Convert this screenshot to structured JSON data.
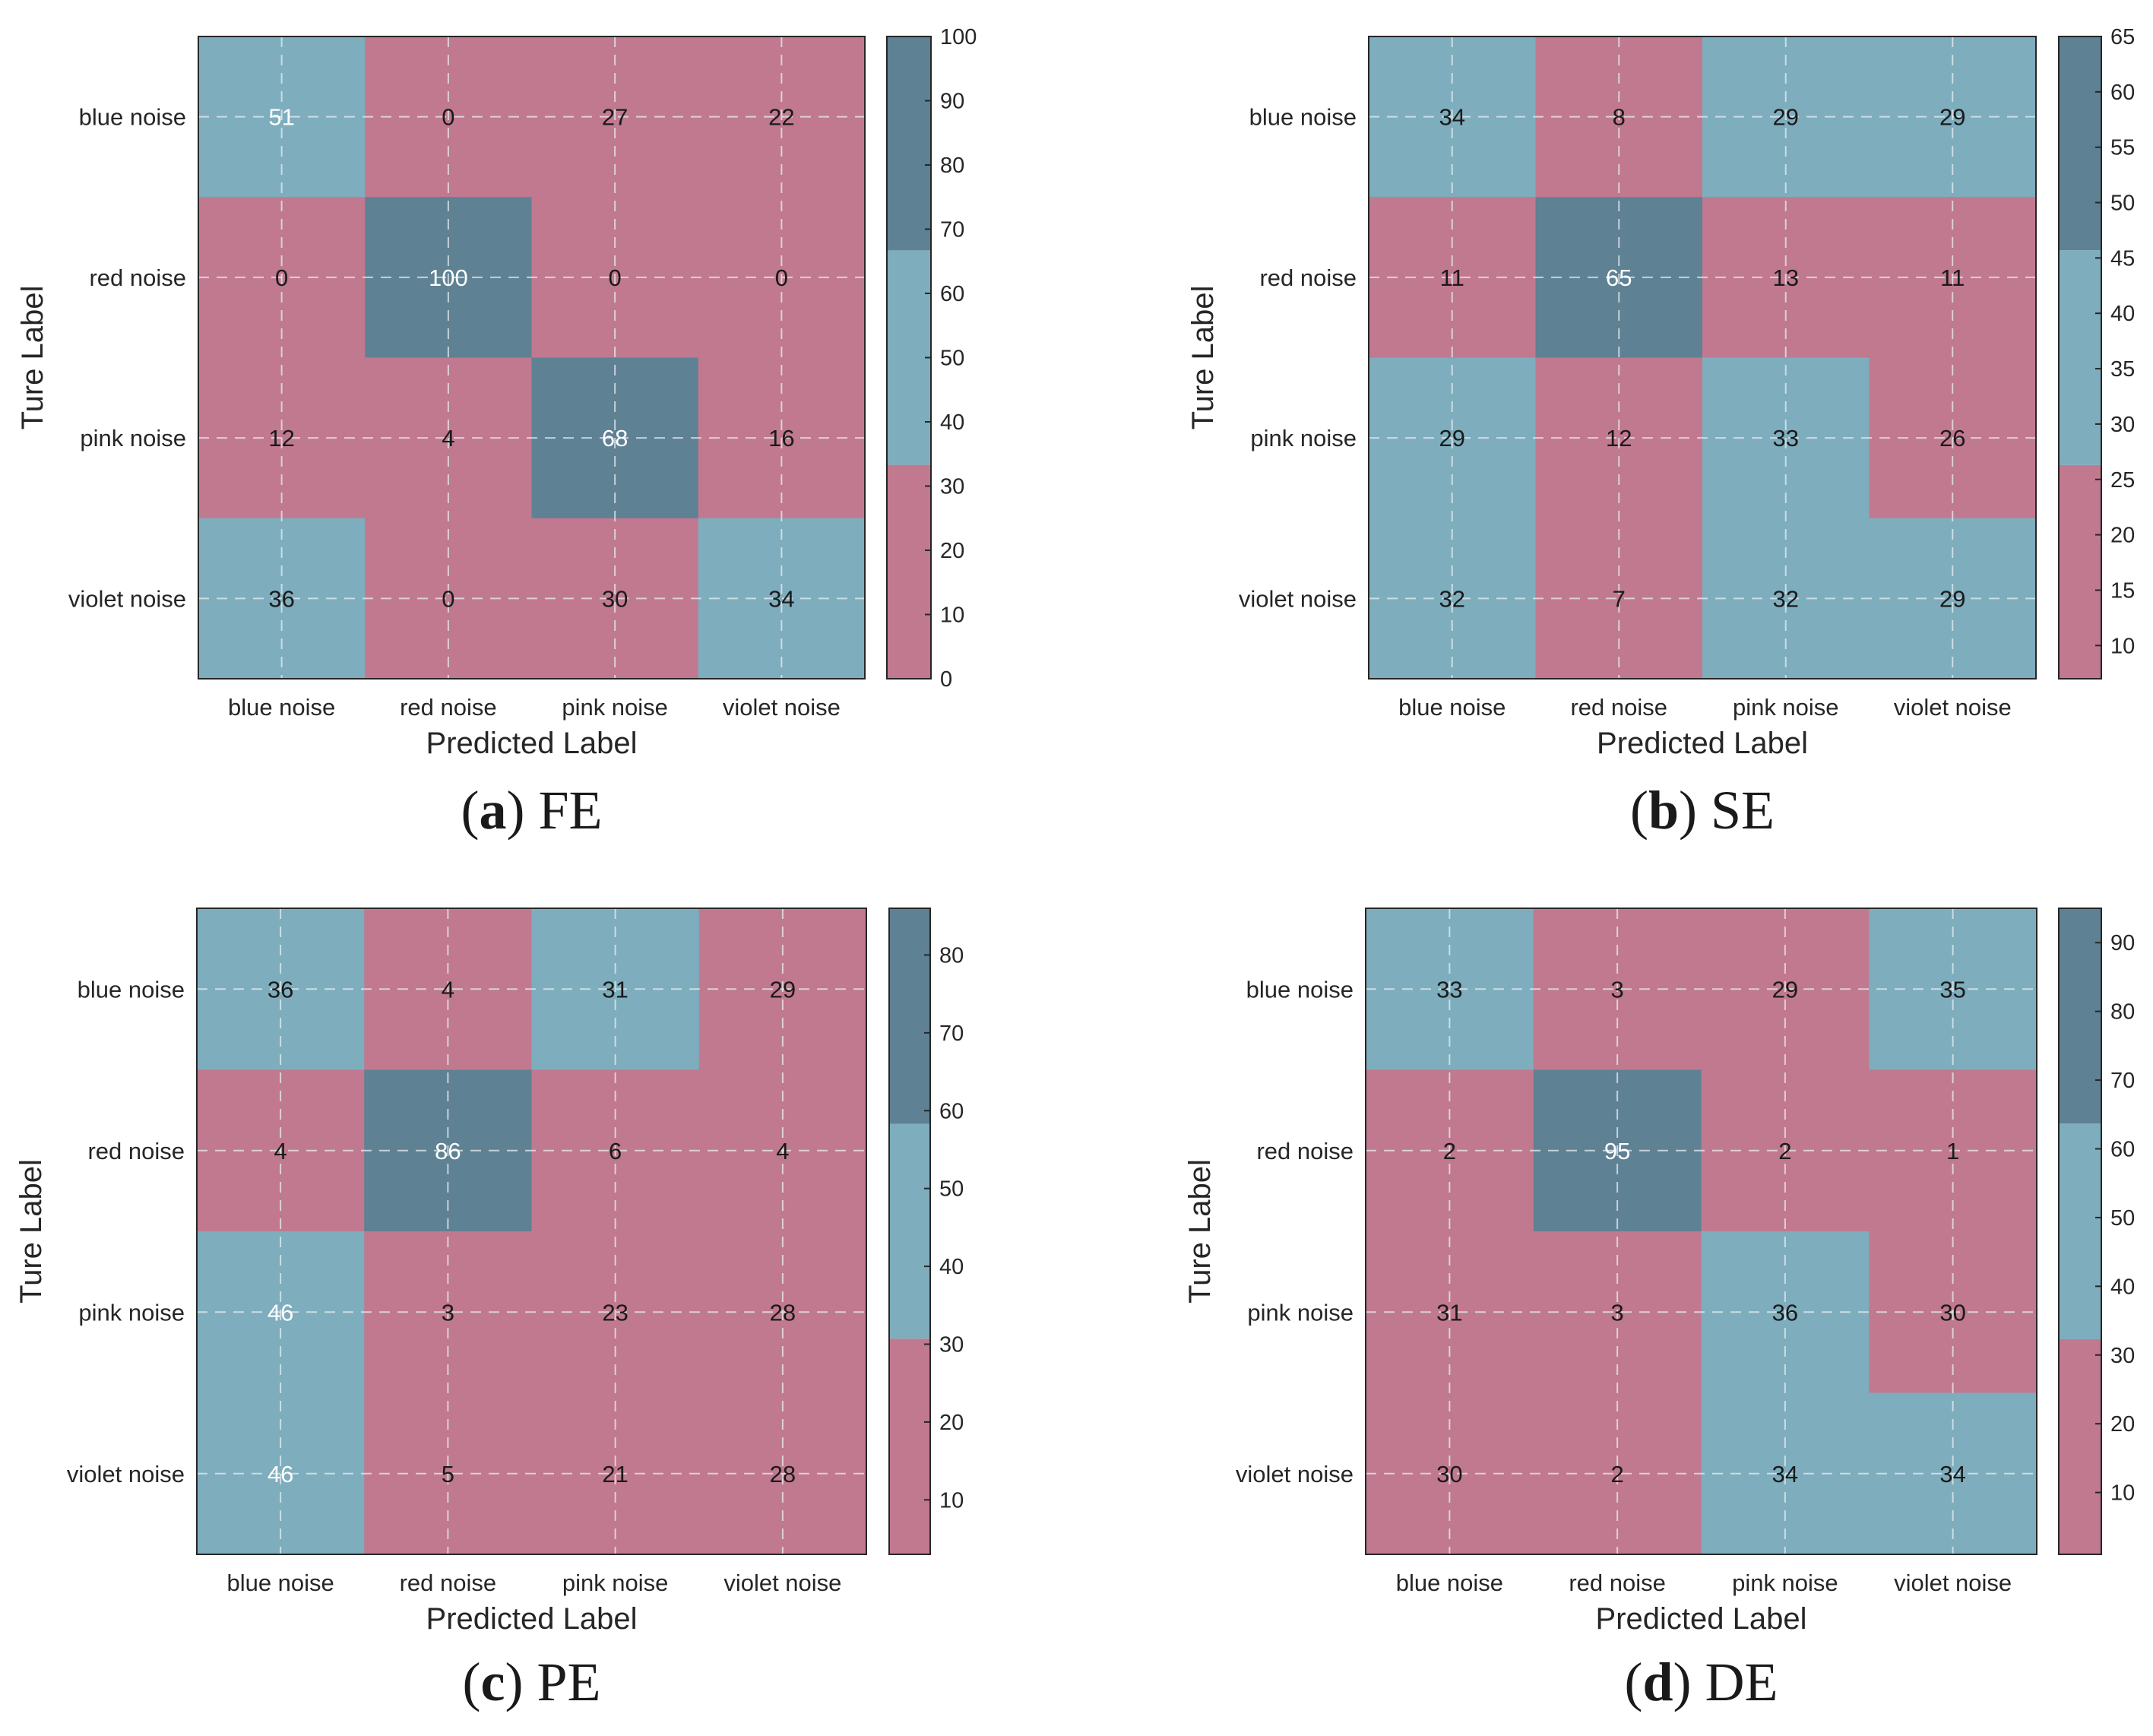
{
  "colors": {
    "low": "#c0798f",
    "mid": "#7eadbd",
    "high": "#5e8193",
    "gridline": "#e6eef2",
    "frame": "#262626",
    "text_dark": "#1a1a1a",
    "text_light": "#ffffff"
  },
  "chart_data": [
    {
      "type": "heatmap",
      "panel_letter": "a",
      "panel_method": "FE",
      "xlabel": "Predicted Label",
      "ylabel": "Ture Label",
      "categories": [
        "blue noise",
        "red noise",
        "pink noise",
        "violet noise"
      ],
      "values": [
        [
          51,
          0,
          27,
          22
        ],
        [
          0,
          100,
          0,
          0
        ],
        [
          12,
          4,
          68,
          16
        ],
        [
          36,
          0,
          30,
          34
        ]
      ],
      "levels": [
        [
          1,
          0,
          0,
          0
        ],
        [
          0,
          2,
          0,
          0
        ],
        [
          0,
          0,
          2,
          0
        ],
        [
          1,
          0,
          0,
          1
        ]
      ],
      "colorbar": {
        "range": [
          0,
          100
        ],
        "ticks": [
          0,
          10,
          20,
          30,
          40,
          50,
          60,
          70,
          80,
          90,
          100
        ],
        "bands": [
          33.3,
          66.7
        ]
      }
    },
    {
      "type": "heatmap",
      "panel_letter": "b",
      "panel_method": "SE",
      "xlabel": "Predicted Label",
      "ylabel": "Ture Label",
      "categories": [
        "blue noise",
        "red noise",
        "pink noise",
        "violet noise"
      ],
      "values": [
        [
          34,
          8,
          29,
          29
        ],
        [
          11,
          65,
          13,
          11
        ],
        [
          29,
          12,
          33,
          26
        ],
        [
          32,
          7,
          32,
          29
        ]
      ],
      "levels": [
        [
          1,
          0,
          1,
          1
        ],
        [
          0,
          2,
          0,
          0
        ],
        [
          1,
          0,
          1,
          0
        ],
        [
          1,
          0,
          1,
          1
        ]
      ],
      "colorbar": {
        "range": [
          7,
          65
        ],
        "ticks": [
          10,
          15,
          20,
          25,
          30,
          35,
          40,
          45,
          50,
          55,
          60,
          65
        ],
        "bands": [
          26.3,
          45.7
        ]
      }
    },
    {
      "type": "heatmap",
      "panel_letter": "c",
      "panel_method": "PE",
      "xlabel": "Predicted Label",
      "ylabel": "Ture Label",
      "categories": [
        "blue noise",
        "red noise",
        "pink noise",
        "violet noise"
      ],
      "values": [
        [
          36,
          4,
          31,
          29
        ],
        [
          4,
          86,
          6,
          4
        ],
        [
          46,
          3,
          23,
          28
        ],
        [
          46,
          5,
          21,
          28
        ]
      ],
      "levels": [
        [
          1,
          0,
          1,
          0
        ],
        [
          0,
          2,
          0,
          0
        ],
        [
          1,
          0,
          0,
          0
        ],
        [
          1,
          0,
          0,
          0
        ]
      ],
      "colorbar": {
        "range": [
          3,
          86
        ],
        "ticks": [
          10,
          20,
          30,
          40,
          50,
          60,
          70,
          80
        ],
        "bands": [
          30.7,
          58.3
        ]
      }
    },
    {
      "type": "heatmap",
      "panel_letter": "d",
      "panel_method": "DE",
      "xlabel": "Predicted Label",
      "ylabel": "Ture Label",
      "categories": [
        "blue noise",
        "red noise",
        "pink noise",
        "violet noise"
      ],
      "values": [
        [
          33,
          3,
          29,
          35
        ],
        [
          2,
          95,
          2,
          1
        ],
        [
          31,
          3,
          36,
          30
        ],
        [
          30,
          2,
          34,
          34
        ]
      ],
      "levels": [
        [
          1,
          0,
          0,
          1
        ],
        [
          0,
          2,
          0,
          0
        ],
        [
          0,
          0,
          1,
          0
        ],
        [
          0,
          0,
          1,
          1
        ]
      ],
      "colorbar": {
        "range": [
          1,
          95
        ],
        "ticks": [
          10,
          20,
          30,
          40,
          50,
          60,
          70,
          80,
          90
        ],
        "bands": [
          32.3,
          63.7
        ]
      }
    }
  ]
}
